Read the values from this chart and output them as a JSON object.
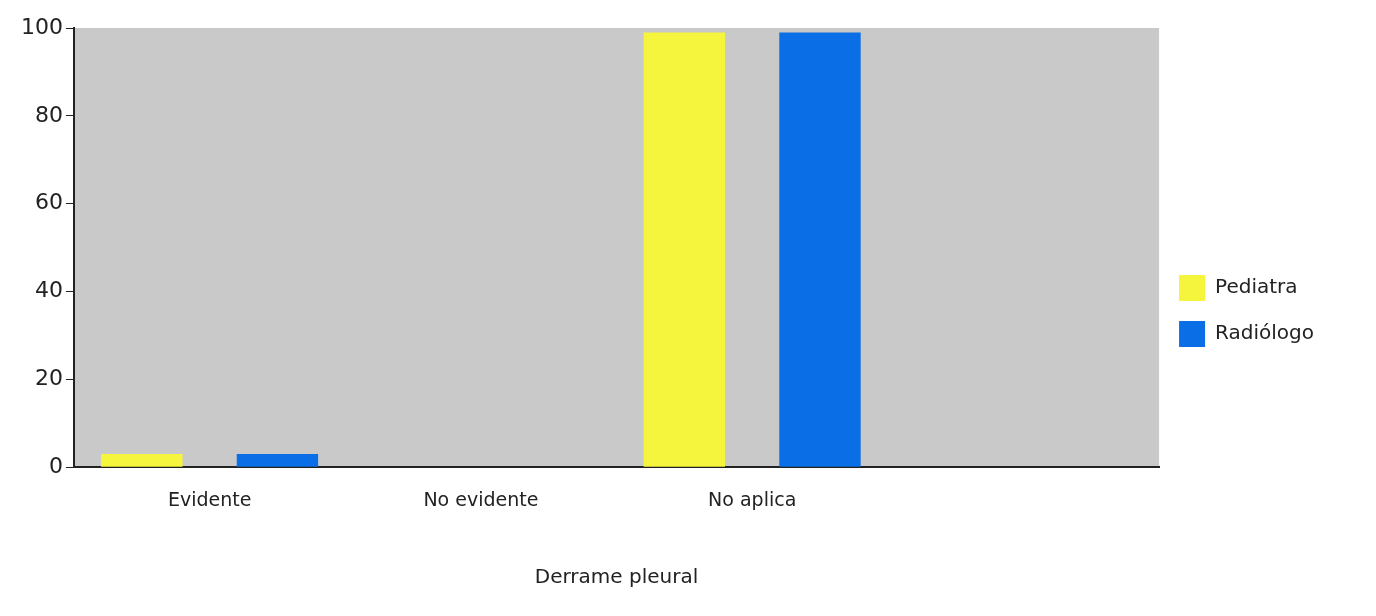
{
  "chart_data": {
    "type": "bar",
    "xlabel": "Derrame pleural",
    "categories": [
      "Evidente",
      "No evidente",
      "No aplica",
      null
    ],
    "series": [
      {
        "name": "Pediatra",
        "color": "#f4f53c",
        "values": [
          3,
          0,
          99,
          null
        ]
      },
      {
        "name": "Radiólogo",
        "color": "#0a6fe6",
        "values": [
          3,
          0,
          99,
          null
        ]
      }
    ],
    "ylim": [
      0,
      100
    ],
    "yticks": [
      0,
      20,
      40,
      60,
      80,
      100
    ],
    "grid": false,
    "legend": "right"
  }
}
